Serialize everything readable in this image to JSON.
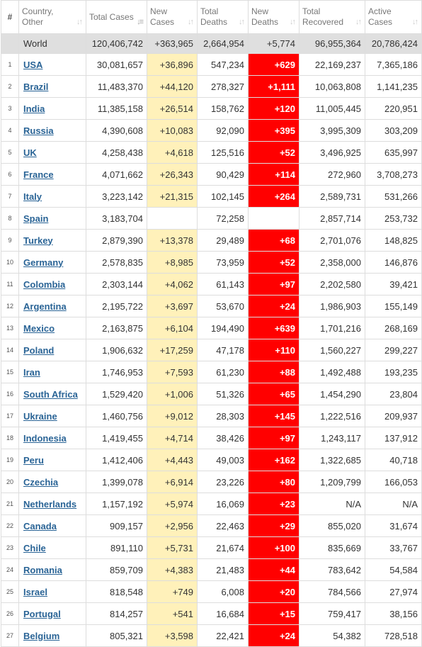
{
  "colors": {
    "new_cases_bg": "#fff1ba",
    "new_deaths_bg": "#ff0000",
    "link": "#2a6496",
    "world_bg": "#dfdfdf"
  },
  "headers": {
    "num": "#",
    "country": "Country, Other",
    "total_cases": "Total Cases",
    "new_cases": "New Cases",
    "total_deaths": "Total Deaths",
    "new_deaths": "New Deaths",
    "total_recovered": "Total Recovered",
    "active_cases": "Active Cases"
  },
  "sort_icons": {
    "default": "sort-icon",
    "active": "sort-desc-icon"
  },
  "world": {
    "name": "World",
    "total_cases": "120,406,742",
    "new_cases": "+363,965",
    "total_deaths": "2,664,954",
    "new_deaths": "+5,774",
    "total_recovered": "96,955,364",
    "active_cases": "20,786,424"
  },
  "rows": [
    {
      "n": "1",
      "country": "USA",
      "total_cases": "30,081,657",
      "new_cases": "+36,896",
      "total_deaths": "547,234",
      "new_deaths": "+629",
      "total_recovered": "22,169,237",
      "active_cases": "7,365,186"
    },
    {
      "n": "2",
      "country": "Brazil",
      "total_cases": "11,483,370",
      "new_cases": "+44,120",
      "total_deaths": "278,327",
      "new_deaths": "+1,111",
      "total_recovered": "10,063,808",
      "active_cases": "1,141,235"
    },
    {
      "n": "3",
      "country": "India",
      "total_cases": "11,385,158",
      "new_cases": "+26,514",
      "total_deaths": "158,762",
      "new_deaths": "+120",
      "total_recovered": "11,005,445",
      "active_cases": "220,951"
    },
    {
      "n": "4",
      "country": "Russia",
      "total_cases": "4,390,608",
      "new_cases": "+10,083",
      "total_deaths": "92,090",
      "new_deaths": "+395",
      "total_recovered": "3,995,309",
      "active_cases": "303,209"
    },
    {
      "n": "5",
      "country": "UK",
      "total_cases": "4,258,438",
      "new_cases": "+4,618",
      "total_deaths": "125,516",
      "new_deaths": "+52",
      "total_recovered": "3,496,925",
      "active_cases": "635,997"
    },
    {
      "n": "6",
      "country": "France",
      "total_cases": "4,071,662",
      "new_cases": "+26,343",
      "total_deaths": "90,429",
      "new_deaths": "+114",
      "total_recovered": "272,960",
      "active_cases": "3,708,273"
    },
    {
      "n": "7",
      "country": "Italy",
      "total_cases": "3,223,142",
      "new_cases": "+21,315",
      "total_deaths": "102,145",
      "new_deaths": "+264",
      "total_recovered": "2,589,731",
      "active_cases": "531,266"
    },
    {
      "n": "8",
      "country": "Spain",
      "total_cases": "3,183,704",
      "new_cases": "",
      "total_deaths": "72,258",
      "new_deaths": "",
      "total_recovered": "2,857,714",
      "active_cases": "253,732"
    },
    {
      "n": "9",
      "country": "Turkey",
      "total_cases": "2,879,390",
      "new_cases": "+13,378",
      "total_deaths": "29,489",
      "new_deaths": "+68",
      "total_recovered": "2,701,076",
      "active_cases": "148,825"
    },
    {
      "n": "10",
      "country": "Germany",
      "total_cases": "2,578,835",
      "new_cases": "+8,985",
      "total_deaths": "73,959",
      "new_deaths": "+52",
      "total_recovered": "2,358,000",
      "active_cases": "146,876"
    },
    {
      "n": "11",
      "country": "Colombia",
      "total_cases": "2,303,144",
      "new_cases": "+4,062",
      "total_deaths": "61,143",
      "new_deaths": "+97",
      "total_recovered": "2,202,580",
      "active_cases": "39,421"
    },
    {
      "n": "12",
      "country": "Argentina",
      "total_cases": "2,195,722",
      "new_cases": "+3,697",
      "total_deaths": "53,670",
      "new_deaths": "+24",
      "total_recovered": "1,986,903",
      "active_cases": "155,149"
    },
    {
      "n": "13",
      "country": "Mexico",
      "total_cases": "2,163,875",
      "new_cases": "+6,104",
      "total_deaths": "194,490",
      "new_deaths": "+639",
      "total_recovered": "1,701,216",
      "active_cases": "268,169"
    },
    {
      "n": "14",
      "country": "Poland",
      "total_cases": "1,906,632",
      "new_cases": "+17,259",
      "total_deaths": "47,178",
      "new_deaths": "+110",
      "total_recovered": "1,560,227",
      "active_cases": "299,227"
    },
    {
      "n": "15",
      "country": "Iran",
      "total_cases": "1,746,953",
      "new_cases": "+7,593",
      "total_deaths": "61,230",
      "new_deaths": "+88",
      "total_recovered": "1,492,488",
      "active_cases": "193,235"
    },
    {
      "n": "16",
      "country": "South Africa",
      "total_cases": "1,529,420",
      "new_cases": "+1,006",
      "total_deaths": "51,326",
      "new_deaths": "+65",
      "total_recovered": "1,454,290",
      "active_cases": "23,804"
    },
    {
      "n": "17",
      "country": "Ukraine",
      "total_cases": "1,460,756",
      "new_cases": "+9,012",
      "total_deaths": "28,303",
      "new_deaths": "+145",
      "total_recovered": "1,222,516",
      "active_cases": "209,937"
    },
    {
      "n": "18",
      "country": "Indonesia",
      "total_cases": "1,419,455",
      "new_cases": "+4,714",
      "total_deaths": "38,426",
      "new_deaths": "+97",
      "total_recovered": "1,243,117",
      "active_cases": "137,912"
    },
    {
      "n": "19",
      "country": "Peru",
      "total_cases": "1,412,406",
      "new_cases": "+4,443",
      "total_deaths": "49,003",
      "new_deaths": "+162",
      "total_recovered": "1,322,685",
      "active_cases": "40,718"
    },
    {
      "n": "20",
      "country": "Czechia",
      "total_cases": "1,399,078",
      "new_cases": "+6,914",
      "total_deaths": "23,226",
      "new_deaths": "+80",
      "total_recovered": "1,209,799",
      "active_cases": "166,053"
    },
    {
      "n": "21",
      "country": "Netherlands",
      "total_cases": "1,157,192",
      "new_cases": "+5,974",
      "total_deaths": "16,069",
      "new_deaths": "+23",
      "total_recovered": "N/A",
      "active_cases": "N/A"
    },
    {
      "n": "22",
      "country": "Canada",
      "total_cases": "909,157",
      "new_cases": "+2,956",
      "total_deaths": "22,463",
      "new_deaths": "+29",
      "total_recovered": "855,020",
      "active_cases": "31,674"
    },
    {
      "n": "23",
      "country": "Chile",
      "total_cases": "891,110",
      "new_cases": "+5,731",
      "total_deaths": "21,674",
      "new_deaths": "+100",
      "total_recovered": "835,669",
      "active_cases": "33,767"
    },
    {
      "n": "24",
      "country": "Romania",
      "total_cases": "859,709",
      "new_cases": "+4,383",
      "total_deaths": "21,483",
      "new_deaths": "+44",
      "total_recovered": "783,642",
      "active_cases": "54,584"
    },
    {
      "n": "25",
      "country": "Israel",
      "total_cases": "818,548",
      "new_cases": "+749",
      "total_deaths": "6,008",
      "new_deaths": "+20",
      "total_recovered": "784,566",
      "active_cases": "27,974"
    },
    {
      "n": "26",
      "country": "Portugal",
      "total_cases": "814,257",
      "new_cases": "+541",
      "total_deaths": "16,684",
      "new_deaths": "+15",
      "total_recovered": "759,417",
      "active_cases": "38,156"
    },
    {
      "n": "27",
      "country": "Belgium",
      "total_cases": "805,321",
      "new_cases": "+3,598",
      "total_deaths": "22,421",
      "new_deaths": "+24",
      "total_recovered": "54,382",
      "active_cases": "728,518"
    }
  ]
}
